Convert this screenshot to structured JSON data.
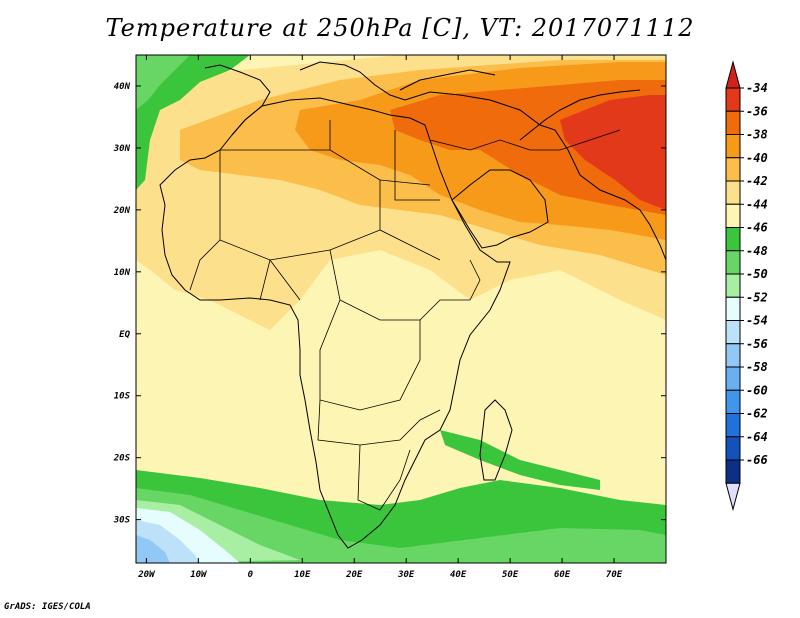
{
  "title": "Temperature at 250hPa [C], VT: 2017071112",
  "credit": "GrADS: IGES/COLA",
  "map": {
    "lon_range": [
      -22,
      80
    ],
    "lat_range": [
      -37,
      45
    ],
    "lat_ticks": [
      {
        "value": 40,
        "label": "40N"
      },
      {
        "value": 30,
        "label": "30N"
      },
      {
        "value": 20,
        "label": "20N"
      },
      {
        "value": 10,
        "label": "10N"
      },
      {
        "value": 0,
        "label": "EQ"
      },
      {
        "value": -10,
        "label": "10S"
      },
      {
        "value": -20,
        "label": "20S"
      },
      {
        "value": -30,
        "label": "30S"
      }
    ],
    "lon_ticks": [
      {
        "value": -20,
        "label": "20W"
      },
      {
        "value": -10,
        "label": "10W"
      },
      {
        "value": 0,
        "label": "0"
      },
      {
        "value": 10,
        "label": "10E"
      },
      {
        "value": 20,
        "label": "20E"
      },
      {
        "value": 30,
        "label": "30E"
      },
      {
        "value": 40,
        "label": "40E"
      },
      {
        "value": 50,
        "label": "50E"
      },
      {
        "value": 60,
        "label": "60E"
      },
      {
        "value": 70,
        "label": "70E"
      }
    ]
  },
  "colorbar": {
    "labels": [
      "-34",
      "-36",
      "-38",
      "-40",
      "-42",
      "-44",
      "-46",
      "-48",
      "-50",
      "-52",
      "-54",
      "-56",
      "-58",
      "-60",
      "-62",
      "-64",
      "-66"
    ],
    "colors": [
      "#e2391b",
      "#f06b0c",
      "#f79a1a",
      "#fbbe4a",
      "#fde08c",
      "#fdf5b4",
      "#3bc53c",
      "#68d665",
      "#a8eea3",
      "#e6fdfd",
      "#bde1f9",
      "#91c8f5",
      "#6ab0f0",
      "#4096ea",
      "#1f72dc",
      "#1452bb",
      "#0c2f88"
    ],
    "top_arrow_color": "#d3211b",
    "bottom_arrow_color": "#e0e0fc"
  }
}
